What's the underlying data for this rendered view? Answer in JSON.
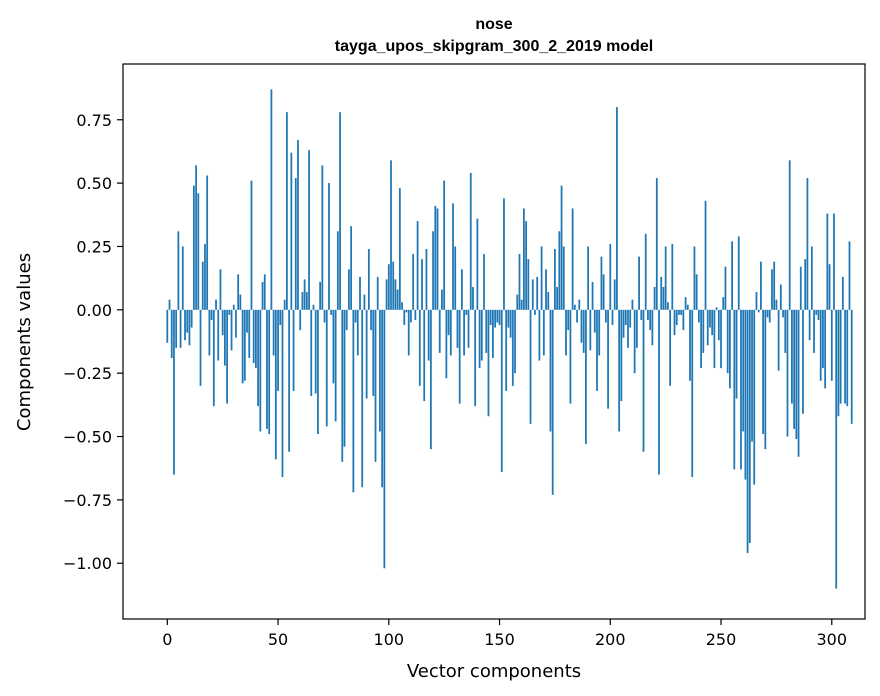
{
  "chart_data": {
    "type": "bar",
    "title": "nose",
    "subtitle": "tayga_upos_skipgram_300_2_2019 model",
    "xlabel": "Vector components",
    "ylabel": "Components values",
    "xlim": [
      -20,
      315
    ],
    "ylim": [
      -1.22,
      0.97
    ],
    "xticks": [
      0,
      50,
      100,
      150,
      200,
      250,
      300
    ],
    "xtick_labels": [
      "0",
      "50",
      "100",
      "150",
      "200",
      "250",
      "300"
    ],
    "yticks": [
      -1.0,
      -0.75,
      -0.5,
      -0.25,
      0.0,
      0.25,
      0.5,
      0.75
    ],
    "ytick_labels": [
      "−1.00",
      "−0.75",
      "−0.50",
      "−0.25",
      "0.00",
      "0.25",
      "0.50",
      "0.75"
    ],
    "grid": false,
    "bar_color": "#1f77b4",
    "series": [
      {
        "name": "nose",
        "values": [
          -0.13,
          0.04,
          -0.19,
          -0.65,
          -0.15,
          0.31,
          -0.15,
          0.25,
          -0.12,
          -0.09,
          -0.14,
          -0.07,
          0.49,
          0.57,
          0.46,
          -0.3,
          0.19,
          0.26,
          0.53,
          -0.18,
          -0.04,
          -0.38,
          0.04,
          -0.2,
          0.16,
          -0.1,
          -0.22,
          -0.37,
          -0.02,
          -0.16,
          0.02,
          -0.11,
          0.14,
          0.06,
          -0.29,
          -0.28,
          -0.09,
          -0.19,
          0.51,
          -0.21,
          -0.23,
          -0.38,
          -0.48,
          0.11,
          0.14,
          -0.47,
          -0.49,
          0.87,
          -0.18,
          -0.59,
          -0.32,
          -0.06,
          -0.66,
          0.04,
          0.78,
          -0.56,
          0.62,
          -0.32,
          0.52,
          0.67,
          -0.08,
          0.07,
          0.12,
          0.07,
          0.63,
          -0.34,
          0.02,
          -0.33,
          -0.49,
          0.11,
          0.57,
          -0.05,
          -0.46,
          0.5,
          -0.02,
          -0.29,
          -0.44,
          0.31,
          0.78,
          -0.6,
          -0.54,
          -0.08,
          0.16,
          0.33,
          -0.72,
          -0.05,
          -0.18,
          0.13,
          -0.7,
          0.06,
          -0.35,
          0.24,
          -0.08,
          -0.34,
          -0.6,
          0.13,
          -0.48,
          -0.7,
          -1.02,
          0.12,
          0.18,
          0.59,
          0.19,
          0.12,
          0.08,
          0.48,
          0.03,
          -0.06,
          -0.01,
          -0.18,
          -0.05,
          0.22,
          -0.04,
          0.35,
          -0.3,
          0.2,
          -0.36,
          0.24,
          -0.2,
          -0.55,
          0.31,
          0.41,
          0.4,
          -0.17,
          0.08,
          0.51,
          -0.27,
          -0.1,
          -0.18,
          0.42,
          0.25,
          -0.15,
          -0.37,
          0.16,
          -0.18,
          -0.02,
          -0.15,
          0.54,
          0.09,
          -0.38,
          0.36,
          -0.23,
          -0.2,
          0.22,
          -0.17,
          -0.42,
          -0.06,
          -0.19,
          -0.07,
          -0.05,
          -0.06,
          -0.64,
          0.44,
          -0.32,
          -0.07,
          -0.11,
          -0.3,
          -0.25,
          0.06,
          0.22,
          0.04,
          0.4,
          0.35,
          0.2,
          -0.45,
          0.12,
          -0.02,
          0.13,
          -0.2,
          0.25,
          -0.18,
          0.16,
          0.07,
          -0.48,
          -0.73,
          0.24,
          0.09,
          0.31,
          0.49,
          0.25,
          -0.18,
          -0.08,
          -0.37,
          0.4,
          0.02,
          -0.05,
          0.04,
          -0.13,
          -0.17,
          -0.53,
          0.25,
          -0.16,
          0.11,
          -0.09,
          -0.32,
          -0.18,
          0.21,
          0.14,
          -0.05,
          -0.39,
          0.26,
          -0.06,
          0.12,
          0.8,
          -0.48,
          -0.36,
          -0.11,
          -0.06,
          -0.15,
          -0.07,
          0.04,
          -0.25,
          -0.15,
          0.21,
          -0.04,
          -0.56,
          0.3,
          -0.04,
          -0.08,
          -0.14,
          0.09,
          0.52,
          -0.65,
          0.13,
          0.09,
          0.25,
          0.03,
          -0.3,
          0.26,
          -0.1,
          -0.06,
          -0.02,
          -0.02,
          -0.08,
          0.05,
          0.02,
          -0.28,
          -0.66,
          0.25,
          0.14,
          -0.05,
          -0.23,
          -0.17,
          0.43,
          -0.14,
          -0.07,
          -0.1,
          -0.23,
          0.01,
          -0.12,
          -0.23,
          0.05,
          0.17,
          -0.25,
          -0.31,
          0.27,
          -0.63,
          -0.35,
          0.29,
          -0.63,
          -0.48,
          -0.67,
          -0.96,
          -0.92,
          -0.52,
          -0.69,
          0.07,
          -0.01,
          0.19,
          -0.49,
          -0.55,
          -0.03,
          -0.05,
          0.16,
          0.19,
          0.04,
          -0.24,
          0.1,
          -0.03,
          -0.17,
          -0.5,
          0.59,
          -0.37,
          -0.47,
          -0.51,
          -0.58,
          0.17,
          -0.41,
          0.2,
          0.52,
          -0.12,
          0.25,
          -0.17,
          -0.02,
          -0.04,
          -0.28,
          -0.23,
          -0.31,
          0.38,
          0.18,
          -0.28,
          0.38,
          -1.1,
          -0.42,
          -0.37,
          0.13,
          -0.37,
          -0.38,
          0.27,
          -0.45
        ]
      }
    ]
  }
}
